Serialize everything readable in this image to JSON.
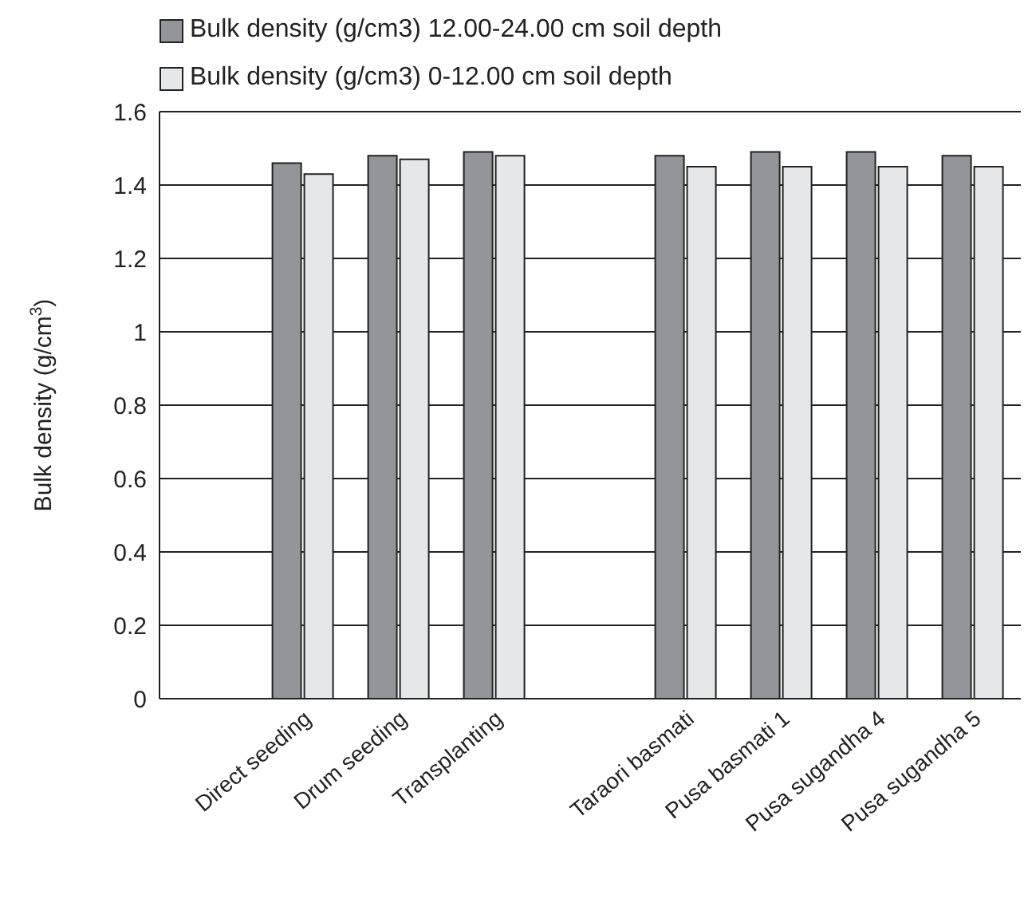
{
  "chart_data": {
    "type": "bar",
    "ylabel": "Bulk density (g/cm$^{3}$)",
    "categories": [
      null,
      "Direct seeding",
      "Drum seeding",
      "Transplanting",
      null,
      "Taraori basmati",
      "Pusa basmati 1",
      "Pusa sugandha 4",
      "Pusa sugandha 5"
    ],
    "series": [
      {
        "name": "Bulk density (g/cm3) 12.00-24.00 cm soil depth",
        "color": "#939598",
        "values": [
          null,
          1.46,
          1.48,
          1.49,
          null,
          1.48,
          1.49,
          1.49,
          1.48
        ]
      },
      {
        "name": "Bulk density (g/cm3) 0-12.00 cm soil depth",
        "color": "#e6e7e8",
        "values": [
          null,
          1.43,
          1.47,
          1.48,
          null,
          1.45,
          1.45,
          1.45,
          1.45
        ]
      }
    ],
    "ylim": [
      0,
      1.6
    ],
    "yticks": [
      0,
      0.2,
      0.4,
      0.6,
      0.8,
      1,
      1.2,
      1.4,
      1.6
    ],
    "grid": "y",
    "legend": "top left"
  }
}
